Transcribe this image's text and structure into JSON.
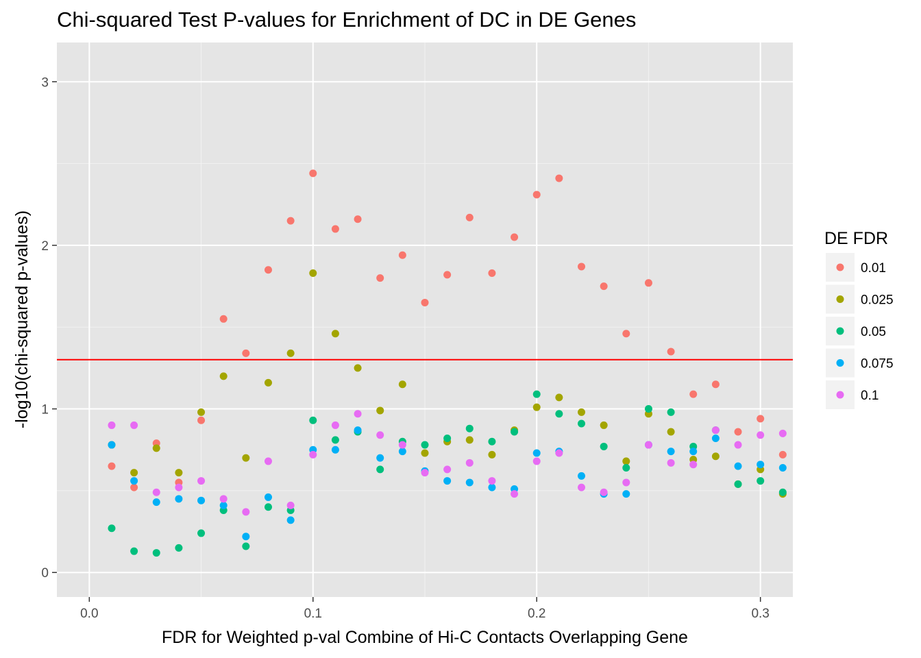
{
  "chart_data": {
    "type": "scatter",
    "title": "Chi-squared Test P-values for Enrichment of DC in DE Genes",
    "xlabel": "FDR for Weighted p-val Combine of Hi-C Contacts Overlapping Gene",
    "ylabel": "-log10(chi-squared p-values)",
    "xlim": [
      -0.0145,
      0.3145
    ],
    "ylim": [
      -0.15,
      3.24
    ],
    "x_ticks": [
      0.0,
      0.1,
      0.2,
      0.3
    ],
    "x_tick_labels": [
      "0.0",
      "0.1",
      "0.2",
      "0.3"
    ],
    "y_ticks": [
      0,
      1,
      2,
      3
    ],
    "y_tick_labels": [
      "0",
      "1",
      "2",
      "3"
    ],
    "grid": true,
    "background": "#e5e5e5",
    "legend": {
      "title": "DE FDR",
      "position": "right"
    },
    "reference_line": {
      "y": 1.301,
      "color": "#ff0000"
    },
    "x": [
      0.01,
      0.02,
      0.03,
      0.04,
      0.05,
      0.06,
      0.07,
      0.08,
      0.09,
      0.1,
      0.11,
      0.12,
      0.13,
      0.14,
      0.15,
      0.16,
      0.17,
      0.18,
      0.19,
      0.2,
      0.21,
      0.22,
      0.23,
      0.24,
      0.25,
      0.26,
      0.27,
      0.28,
      0.29,
      0.3,
      0.31
    ],
    "series": [
      {
        "name": "0.01",
        "color": "#f8766d",
        "values": [
          0.65,
          0.52,
          0.79,
          0.55,
          0.93,
          1.55,
          1.34,
          1.85,
          2.15,
          2.44,
          2.1,
          2.16,
          1.8,
          1.94,
          1.65,
          1.82,
          2.17,
          1.83,
          2.05,
          2.31,
          2.41,
          1.87,
          1.75,
          1.46,
          1.77,
          1.35,
          1.09,
          1.15,
          0.86,
          0.94,
          0.72
        ]
      },
      {
        "name": "0.025",
        "color": "#a3a500",
        "values": [
          0.78,
          0.61,
          0.76,
          0.61,
          0.98,
          1.2,
          0.7,
          1.16,
          1.34,
          1.83,
          1.46,
          1.25,
          0.99,
          1.15,
          0.73,
          0.8,
          0.81,
          0.72,
          0.87,
          1.01,
          1.07,
          0.98,
          0.9,
          0.68,
          0.97,
          0.86,
          0.69,
          0.71,
          0.54,
          0.63,
          0.48
        ]
      },
      {
        "name": "0.05",
        "color": "#00bf7d",
        "values": [
          0.27,
          0.13,
          0.12,
          0.15,
          0.24,
          0.38,
          0.16,
          0.4,
          0.38,
          0.93,
          0.81,
          0.86,
          0.63,
          0.8,
          0.78,
          0.82,
          0.88,
          0.8,
          0.86,
          1.09,
          0.97,
          0.91,
          0.77,
          0.64,
          1.0,
          0.98,
          0.77,
          0.87,
          0.54,
          0.56,
          0.49
        ]
      },
      {
        "name": "0.075",
        "color": "#00b0f6",
        "values": [
          0.78,
          0.56,
          0.43,
          0.45,
          0.44,
          0.41,
          0.22,
          0.46,
          0.32,
          0.75,
          0.75,
          0.87,
          0.7,
          0.74,
          0.62,
          0.56,
          0.55,
          0.52,
          0.51,
          0.73,
          0.74,
          0.59,
          0.48,
          0.48,
          0.78,
          0.74,
          0.74,
          0.82,
          0.65,
          0.66,
          0.64
        ]
      },
      {
        "name": "0.1",
        "color": "#e76bf3",
        "values": [
          0.9,
          0.9,
          0.49,
          0.52,
          0.56,
          0.45,
          0.37,
          0.68,
          0.41,
          0.72,
          0.9,
          0.97,
          0.84,
          0.78,
          0.61,
          0.63,
          0.67,
          0.56,
          0.48,
          0.68,
          0.73,
          0.52,
          0.49,
          0.55,
          0.78,
          0.67,
          0.66,
          0.87,
          0.78,
          0.84,
          0.85
        ]
      }
    ]
  }
}
